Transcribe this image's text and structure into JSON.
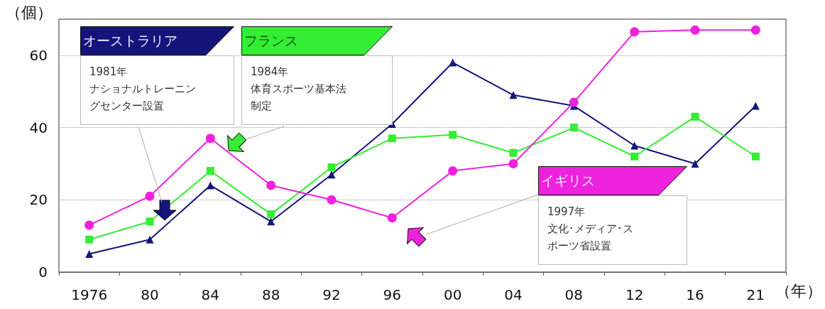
{
  "chart_data": {
    "type": "line",
    "categories": [
      "1976",
      "80",
      "84",
      "88",
      "92",
      "96",
      "00",
      "04",
      "08",
      "12",
      "16",
      "21"
    ],
    "series": [
      {
        "name": "オーストラリア",
        "color": "#14147a",
        "marker": "triangle",
        "values": [
          5,
          9,
          24,
          14,
          27,
          41,
          58,
          49,
          46,
          35,
          30,
          46
        ]
      },
      {
        "name": "フランス",
        "color": "#33ee33",
        "marker": "square",
        "values": [
          9,
          14,
          28,
          16,
          29,
          37,
          38,
          33,
          40,
          32,
          43,
          32
        ]
      },
      {
        "name": "イギリス",
        "color": "#ee22dd",
        "marker": "circle",
        "values": [
          13,
          21,
          37,
          24,
          20,
          15,
          28,
          30,
          47,
          66.5,
          67,
          67
        ]
      }
    ],
    "ylabel": "（個）",
    "xlabel": "（年）",
    "ylim": [
      0,
      70
    ],
    "yticks": [
      0,
      20,
      40,
      60
    ],
    "grid": "y",
    "annotations": [
      "1981年ナショナルトレーニングセンター設置",
      "1984年体育スポーツ基本法制定",
      "1997年文化･メディア･スポーツ省設置"
    ]
  }
}
